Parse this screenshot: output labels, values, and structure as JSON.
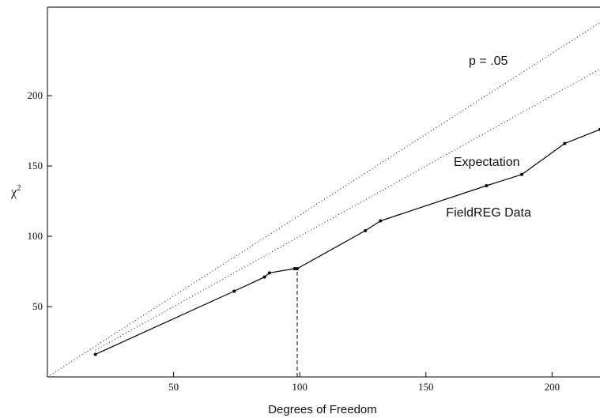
{
  "chart_data": {
    "type": "line",
    "xlabel": "Degrees of Freedom",
    "ylabel": "χ",
    "ylabel_superscript": "2",
    "xlim": [
      0,
      219
    ],
    "ylim": [
      0,
      263
    ],
    "xticks": [
      50,
      100,
      150,
      200
    ],
    "yticks": [
      50,
      100,
      150,
      200
    ],
    "grid": false,
    "series": [
      {
        "name": "FieldREG Data",
        "style": "solid",
        "markers": true,
        "x": [
          19,
          74,
          86,
          88,
          98,
          99,
          126,
          132,
          174,
          188,
          205,
          219
        ],
        "y": [
          16,
          61,
          71,
          74,
          77,
          77,
          104,
          111,
          136,
          144,
          166,
          176
        ]
      },
      {
        "name": "Expectation",
        "style": "dotted",
        "x": [
          19,
          219
        ],
        "y": [
          19,
          219
        ]
      },
      {
        "name": "p = .05",
        "style": "dotted",
        "x": [
          0,
          219
        ],
        "y": [
          0,
          252
        ]
      }
    ],
    "vertical_marker": {
      "x": 99,
      "y_from": 0,
      "y_to": 77,
      "style": "dashed"
    },
    "annotations": [
      {
        "text": "p = .05",
        "x": 167,
        "y": 222
      },
      {
        "text": "Expectation",
        "x": 161,
        "y": 150
      },
      {
        "text": "FieldREG Data",
        "x": 158,
        "y": 114
      }
    ]
  }
}
